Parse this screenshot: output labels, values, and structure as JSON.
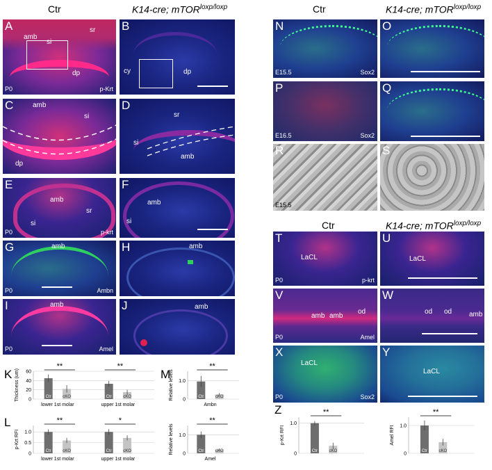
{
  "headers": {
    "left_ctr": "Ctr",
    "left_mut_main": "K14-cre; mTOR",
    "left_mut_sup": "loxp/loxp",
    "right_ctr": "Ctr",
    "right_mut_main": "K14-cre; mTOR",
    "right_mut_sup": "loxp/loxp",
    "right2_ctr": "Ctr",
    "right2_mut_main": "K14-cre; mTOR",
    "right2_mut_sup": "loxp/loxp"
  },
  "panels": {
    "A": {
      "letter": "A",
      "labels": [
        "amb",
        "si",
        "sr",
        "dp"
      ],
      "stage": "P0",
      "marker": "p-Krt"
    },
    "B": {
      "letter": "B",
      "labels": [
        "cy",
        "dp"
      ]
    },
    "C": {
      "letter": "C",
      "labels": [
        "amb",
        "si",
        "dp"
      ]
    },
    "D": {
      "letter": "D",
      "labels": [
        "sr",
        "si",
        "amb"
      ]
    },
    "E": {
      "letter": "E",
      "labels": [
        "amb",
        "sr",
        "si"
      ],
      "stage": "P0",
      "marker": "p-krt"
    },
    "F": {
      "letter": "F",
      "labels": [
        "amb",
        "si"
      ]
    },
    "G": {
      "letter": "G",
      "labels": [
        "amb"
      ],
      "stage": "P0",
      "marker": "Ambn"
    },
    "H": {
      "letter": "H",
      "labels": [
        "amb"
      ]
    },
    "I": {
      "letter": "I",
      "labels": [
        "amb"
      ],
      "stage": "P0",
      "marker": "Amel"
    },
    "J": {
      "letter": "J",
      "labels": [
        "amb"
      ]
    },
    "N": {
      "letter": "N",
      "stage": "E15.5",
      "marker": "Sox2"
    },
    "O": {
      "letter": "O"
    },
    "P": {
      "letter": "P",
      "stage": "E16.5",
      "marker": "Sox2"
    },
    "Q": {
      "letter": "Q"
    },
    "R": {
      "letter": "R",
      "stage": "E15.5"
    },
    "S": {
      "letter": "S"
    },
    "T": {
      "letter": "T",
      "labels": [
        "LaCL"
      ],
      "stage": "P0",
      "marker": "p-krt"
    },
    "U": {
      "letter": "U",
      "labels": [
        "LaCL"
      ]
    },
    "V": {
      "letter": "V",
      "labels": [
        "amb",
        "amb",
        "od"
      ],
      "stage": "P0",
      "marker": "Amel"
    },
    "W": {
      "letter": "W",
      "labels": [
        "od",
        "od",
        "amb"
      ]
    },
    "X": {
      "letter": "X",
      "labels": [
        "LaCL"
      ],
      "stage": "P0",
      "marker": "Sox2"
    },
    "Y": {
      "letter": "Y",
      "labels": [
        "LaCL"
      ]
    }
  },
  "letters": {
    "K": "K",
    "L": "L",
    "M": "M",
    "Z": "Z"
  },
  "chart_data": [
    {
      "panel": "K",
      "type": "bar",
      "ylabel": "Thickness (um)",
      "ylim": [
        0,
        60
      ],
      "yticks": [
        "0",
        "20",
        "40",
        "60"
      ],
      "groups": [
        "lower 1st molar",
        "upper 1st molar"
      ],
      "bar_labels": [
        "Ctr",
        "cKO",
        "Ctr",
        "cKO"
      ],
      "values": [
        45,
        22,
        33,
        15
      ],
      "errors": [
        8,
        8,
        6,
        5
      ],
      "significance": [
        "**",
        "**"
      ],
      "colors": [
        "#6e6e6e",
        "#c4c4c4"
      ]
    },
    {
      "panel": "L",
      "type": "bar",
      "ylabel": "p-Krt RFI",
      "ylim": [
        0,
        1.3
      ],
      "yticks": [
        "0",
        "0.5",
        "1.0"
      ],
      "groups": [
        "lower 1st molar",
        "upper 1st molar"
      ],
      "bar_labels": [
        "Ctr",
        "cKO",
        "Ctr",
        "cKO"
      ],
      "values": [
        1.0,
        0.6,
        1.0,
        0.72
      ],
      "errors": [
        0.12,
        0.12,
        0.13,
        0.12
      ],
      "significance": [
        "**",
        "*"
      ],
      "colors": [
        "#6e6e6e",
        "#c4c4c4"
      ]
    },
    {
      "panel": "M1",
      "type": "bar",
      "ylabel": "Relative levels",
      "ylim": [
        0,
        1.5
      ],
      "yticks": [
        "0",
        "1.0"
      ],
      "groups": [
        "Ambn"
      ],
      "bar_labels": [
        "Ctr",
        "cKO"
      ],
      "values": [
        0.95,
        0.25
      ],
      "errors": [
        0.3,
        0.08
      ],
      "significance": [
        "**"
      ],
      "colors": [
        "#6e6e6e",
        "#c4c4c4"
      ]
    },
    {
      "panel": "M2",
      "type": "bar",
      "ylabel": "Relative levels",
      "ylim": [
        0,
        1.5
      ],
      "yticks": [
        "0",
        "1.0"
      ],
      "groups": [
        "Amel"
      ],
      "bar_labels": [
        "Ctr",
        "cKO"
      ],
      "values": [
        1.0,
        0.2
      ],
      "errors": [
        0.18,
        0.06
      ],
      "significance": [
        "**"
      ],
      "colors": [
        "#6e6e6e",
        "#c4c4c4"
      ]
    },
    {
      "panel": "Z1",
      "type": "bar",
      "ylabel": "p-Krt RFI",
      "ylim": [
        0,
        1.2
      ],
      "yticks": [
        "0",
        "1.0"
      ],
      "groups": [
        ""
      ],
      "bar_labels": [
        "Ctr",
        "cKO"
      ],
      "values": [
        1.0,
        0.25
      ],
      "errors": [
        0.07,
        0.1
      ],
      "significance": [
        "**"
      ],
      "colors": [
        "#6e6e6e",
        "#c4c4c4"
      ]
    },
    {
      "panel": "Z2",
      "type": "bar",
      "ylabel": "Amel RFI",
      "ylim": [
        0,
        1.3
      ],
      "yticks": [
        "0",
        "1.0"
      ],
      "groups": [
        ""
      ],
      "bar_labels": [
        "Ctr",
        "cKO"
      ],
      "values": [
        1.0,
        0.4
      ],
      "errors": [
        0.18,
        0.12
      ],
      "significance": [
        "**"
      ],
      "colors": [
        "#6e6e6e",
        "#c4c4c4"
      ]
    }
  ]
}
